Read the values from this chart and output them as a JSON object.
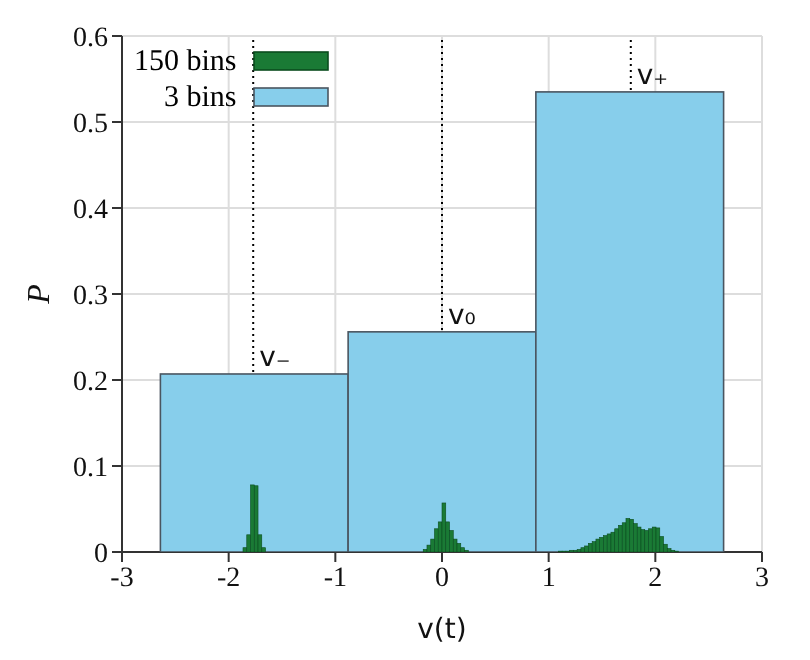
{
  "chart_data": {
    "type": "histogram",
    "xlabel": "v(t)",
    "ylabel": "P",
    "xlim": [
      -3,
      3
    ],
    "xticks": [
      -3,
      -2,
      -1,
      0,
      1,
      2,
      3
    ],
    "ylim": [
      0,
      0.6
    ],
    "yticks": [
      0,
      0.1,
      0.2,
      0.3,
      0.4,
      0.5,
      0.6
    ],
    "grid": true,
    "legend": "top left",
    "bins": [
      -1.8656,
      -1.8304,
      -1.7952,
      -1.76,
      -1.7248,
      -1.6896,
      -1.6544,
      -0.176,
      -0.1408,
      -0.1056,
      -0.0704,
      -0.0352,
      0,
      0.0352,
      0.0704,
      0.1056,
      0.1408,
      0.176,
      0.2112,
      0.2464,
      1.0912,
      1.1264,
      1.1616,
      1.1968,
      1.232,
      1.2672,
      1.3024,
      1.3376,
      1.3728,
      1.408,
      1.4432,
      1.4784,
      1.5136,
      1.5488,
      1.584,
      1.6192,
      1.6544,
      1.6896,
      1.7248,
      1.76,
      1.7952,
      1.8304,
      1.8656,
      1.9008,
      1.936,
      1.9712,
      2.0064,
      2.0416,
      2.0768,
      2.112,
      2.1472,
      2.1824,
      2.2176
    ],
    "series": [
      {
        "name": "150 bins",
        "color": "#1a7a35",
        "values": [
          0.005,
          0.02,
          0.078,
          0.077,
          0.02,
          0.005,
          null,
          0.003,
          0.008,
          0.015,
          0.027,
          0.035,
          0.057,
          0.035,
          0.025,
          0.015,
          0.01,
          0.005,
          0.002,
          null,
          0.001,
          0.001,
          0.001,
          0.002,
          0.002,
          0.003,
          0.005,
          0.007,
          0.01,
          0.012,
          0.015,
          0.017,
          0.019,
          0.021,
          0.023,
          0.027,
          0.031,
          0.034,
          0.039,
          0.038,
          0.033,
          0.029,
          0.026,
          0.025,
          0.027,
          0.029,
          0.028,
          0.018,
          0.009,
          0.004,
          0.002,
          0.001
        ]
      },
      {
        "name": "3 bins",
        "color": "#87ceeb",
        "bins": [
          -2.64,
          -0.88,
          0.88,
          2.64
        ],
        "values": [
          0.207,
          0.256,
          0.535
        ]
      }
    ],
    "ref_lines": [
      {
        "axis": "x",
        "value": -1.77,
        "label": "v₋",
        "color": "#000000",
        "line_style": "dotted"
      },
      {
        "axis": "x",
        "value": 0,
        "label": "v₀",
        "color": "#000000",
        "line_style": "dotted"
      },
      {
        "axis": "x",
        "value": 1.77,
        "label": "v₊",
        "color": "#000000",
        "line_style": "dotted"
      }
    ]
  }
}
